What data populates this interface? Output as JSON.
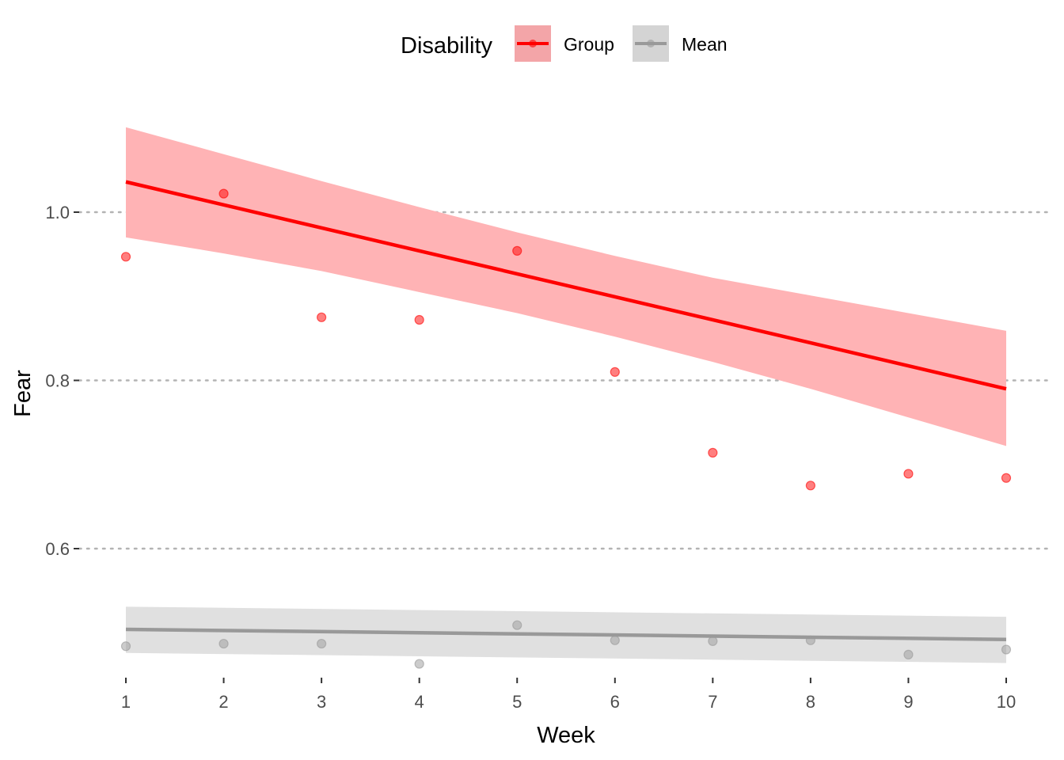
{
  "chart_data": {
    "type": "scatter",
    "title": "",
    "xlabel": "Week",
    "ylabel": "Fear",
    "xlim": [
      0.97,
      10.4
    ],
    "ylim": [
      0.445,
      1.125
    ],
    "x_ticks": [
      1,
      2,
      3,
      4,
      5,
      6,
      7,
      8,
      9,
      10
    ],
    "x_tick_labels": [
      "1",
      "2",
      "3",
      "4",
      "5",
      "6",
      "7",
      "8",
      "9",
      "10"
    ],
    "y_ticks": [
      0.6,
      0.8,
      1.0
    ],
    "y_tick_labels": [
      "0.6",
      "0.8",
      "1.0"
    ],
    "grid": "horizontal dotted at y ticks",
    "legend": {
      "title": "Disability",
      "position": "top",
      "entries": [
        "Group",
        "Mean"
      ]
    },
    "series": [
      {
        "name": "Group",
        "color": "#ff0000",
        "band_color": "#ffb3b5",
        "points": [
          {
            "x": 1,
            "y": 0.947
          },
          {
            "x": 2,
            "y": 1.022
          },
          {
            "x": 3,
            "y": 0.875
          },
          {
            "x": 4,
            "y": 0.872
          },
          {
            "x": 5,
            "y": 0.954
          },
          {
            "x": 6,
            "y": 0.81
          },
          {
            "x": 7,
            "y": 0.714
          },
          {
            "x": 8,
            "y": 0.675
          },
          {
            "x": 9,
            "y": 0.689
          },
          {
            "x": 10,
            "y": 0.684
          }
        ],
        "trend": {
          "x": [
            1,
            10
          ],
          "y": [
            1.036,
            0.79
          ]
        },
        "confidence_band": {
          "x": [
            1,
            2,
            3,
            4,
            5,
            6,
            7,
            8,
            9,
            10
          ],
          "upper": [
            1.101,
            1.069,
            1.037,
            1.006,
            0.976,
            0.948,
            0.922,
            0.901,
            0.88,
            0.859
          ],
          "lower": [
            0.97,
            0.951,
            0.93,
            0.905,
            0.88,
            0.852,
            0.822,
            0.79,
            0.756,
            0.722
          ]
        }
      },
      {
        "name": "Mean",
        "color": "#999999",
        "band_color": "#e0e0e0",
        "points": [
          {
            "x": 1,
            "y": 0.484
          },
          {
            "x": 2,
            "y": 0.487
          },
          {
            "x": 3,
            "y": 0.487
          },
          {
            "x": 4,
            "y": 0.463
          },
          {
            "x": 5,
            "y": 0.509
          },
          {
            "x": 6,
            "y": 0.491
          },
          {
            "x": 7,
            "y": 0.49
          },
          {
            "x": 8,
            "y": 0.491
          },
          {
            "x": 9,
            "y": 0.474
          },
          {
            "x": 10,
            "y": 0.48
          }
        ],
        "trend": {
          "x": [
            1,
            10
          ],
          "y": [
            0.504,
            0.492
          ]
        },
        "confidence_band": {
          "x": [
            1,
            10
          ],
          "upper": [
            0.531,
            0.519
          ],
          "lower": [
            0.476,
            0.464
          ]
        }
      }
    ]
  }
}
